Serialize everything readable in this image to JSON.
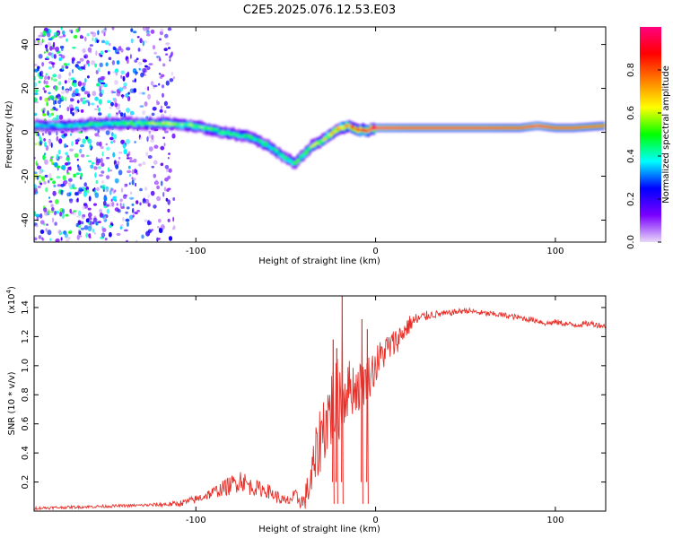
{
  "chart_data": [
    {
      "type": "heatmap",
      "title": "C2E5.2025.076.12.53.E03",
      "xlabel": "Height of straight line (km)",
      "ylabel": "Frequency (Hz)",
      "xlim": [
        -190,
        128
      ],
      "ylim": [
        -50,
        48
      ],
      "xticks": [
        -100,
        0,
        100
      ],
      "yticks": [
        -40,
        -20,
        0,
        20,
        40
      ],
      "colorbar": {
        "label": "Normalized spectral amplitude",
        "range": [
          0,
          1
        ],
        "ticks": [
          "0.0",
          "0.2",
          "0.4",
          "0.6",
          "0.8"
        ],
        "colors": [
          "#e8d8f8",
          "#7a00ff",
          "#0000ff",
          "#00ffff",
          "#00ff00",
          "#ffff00",
          "#ff8000",
          "#ff0000",
          "#ff0080"
        ]
      },
      "ridge": {
        "x": [
          -190,
          -170,
          -150,
          -130,
          -115,
          -100,
          -85,
          -70,
          -60,
          -50,
          -45,
          -40,
          -35,
          -30,
          -25,
          -20,
          -15,
          -10,
          -5,
          0,
          20,
          40,
          60,
          80,
          90,
          100,
          110,
          128
        ],
        "y": [
          3,
          3,
          4,
          4,
          4,
          3,
          0,
          -2,
          -6,
          -12,
          -14,
          -10,
          -6,
          -4,
          -1,
          2,
          3,
          1,
          1,
          2,
          2,
          2,
          2,
          2,
          3,
          2,
          2,
          3
        ],
        "amplitude": [
          0.4,
          0.45,
          0.5,
          0.55,
          0.6,
          0.55,
          0.5,
          0.5,
          0.5,
          0.45,
          0.5,
          0.55,
          0.6,
          0.65,
          0.7,
          0.75,
          0.85,
          0.9,
          0.95,
          1.0,
          0.95,
          0.95,
          0.95,
          0.9,
          1.0,
          0.9,
          0.9,
          0.85
        ]
      },
      "noise_region": {
        "x_range": [
          -190,
          -112
        ],
        "y_range": [
          -50,
          48
        ]
      }
    },
    {
      "type": "line",
      "xlabel": "Height of straight line (km)",
      "ylabel": "SNR (10 * v/v)",
      "yscale_label": "(x10",
      "yscale_exp": "4",
      "xlim": [
        -190,
        128
      ],
      "ylim": [
        0,
        1.48
      ],
      "xticks": [
        -100,
        0,
        100
      ],
      "yticks": [
        "0.2",
        "0.4",
        "0.6",
        "0.8",
        "1.0",
        "1.2",
        "1.4"
      ],
      "series": [
        {
          "name": "SNR",
          "color": "#e8302a",
          "x": [
            -190,
            -160,
            -130,
            -110,
            -100,
            -90,
            -80,
            -75,
            -70,
            -60,
            -50,
            -45,
            -40,
            -35,
            -30,
            -25,
            -22,
            -20,
            -18,
            -15,
            -10,
            -5,
            0,
            5,
            10,
            20,
            30,
            40,
            50,
            60,
            70,
            80,
            90,
            95,
            100,
            110,
            120,
            128
          ],
          "y": [
            0.02,
            0.03,
            0.04,
            0.05,
            0.08,
            0.13,
            0.18,
            0.22,
            0.17,
            0.14,
            0.06,
            0.1,
            0.06,
            0.25,
            0.55,
            0.7,
            0.75,
            0.78,
            0.8,
            0.85,
            0.85,
            0.9,
            1.0,
            1.1,
            1.15,
            1.3,
            1.35,
            1.36,
            1.38,
            1.36,
            1.35,
            1.33,
            1.31,
            1.29,
            1.3,
            1.28,
            1.29,
            1.27
          ],
          "noise": [
            0.01,
            0.01,
            0.01,
            0.02,
            0.03,
            0.04,
            0.07,
            0.08,
            0.06,
            0.05,
            0.04,
            0.05,
            0.06,
            0.2,
            0.25,
            0.3,
            0.3,
            0.3,
            0.25,
            0.2,
            0.18,
            0.16,
            0.14,
            0.12,
            0.1,
            0.06,
            0.03,
            0.02,
            0.02,
            0.02,
            0.02,
            0.02,
            0.02,
            0.02,
            0.02,
            0.02,
            0.02,
            0.02
          ]
        }
      ],
      "spikes": [
        {
          "x": -24,
          "y": 1.18
        },
        {
          "x": -19,
          "y": 1.48
        },
        {
          "x": -22,
          "y": 1.12
        },
        {
          "x": -8,
          "y": 1.32
        },
        {
          "x": -5,
          "y": 1.25
        }
      ]
    }
  ]
}
